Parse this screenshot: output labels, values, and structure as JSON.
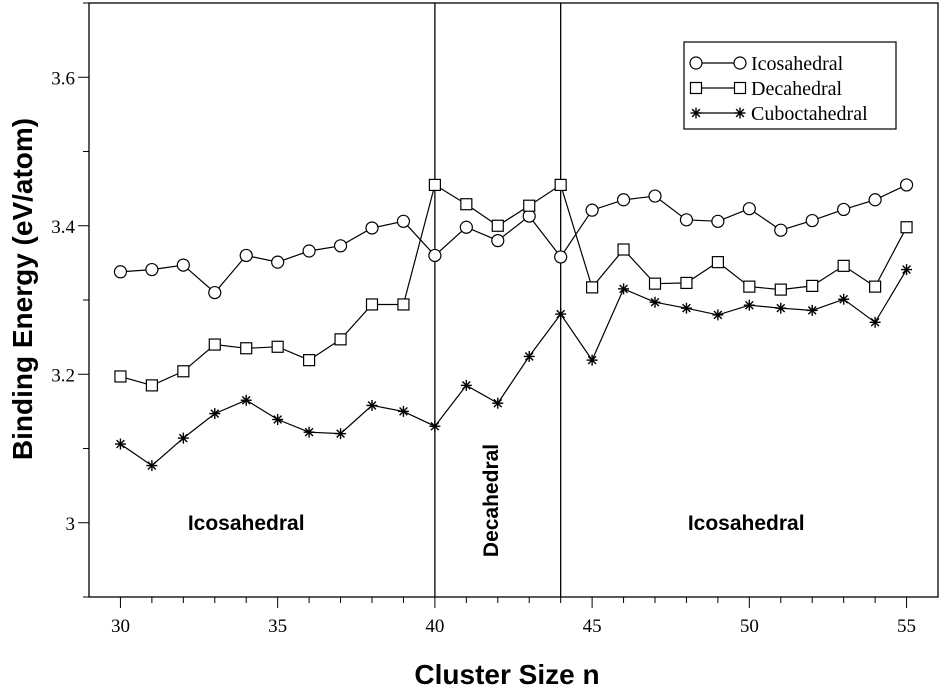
{
  "chart_data": {
    "type": "line",
    "title": "",
    "xlabel": "Cluster Size n",
    "ylabel": "Binding Energy (eV/atom)",
    "xlim": [
      29,
      56
    ],
    "ylim": [
      2.9,
      3.7
    ],
    "x_ticks": [
      30,
      35,
      40,
      45,
      50,
      55
    ],
    "x_tick_labels": [
      "30",
      "35",
      "40",
      "45",
      "50",
      "55"
    ],
    "x_minor_ticks": [
      31,
      32,
      33,
      34,
      36,
      37,
      38,
      39,
      41,
      42,
      43,
      44,
      46,
      47,
      48,
      49,
      51,
      52,
      53,
      54
    ],
    "y_ticks": [
      3.0,
      3.2,
      3.4,
      3.6
    ],
    "y_tick_labels": [
      "3",
      "3.2",
      "3.4",
      "3.6"
    ],
    "y_minor_ticks": [
      2.9,
      3.1,
      3.3,
      3.5,
      3.7
    ],
    "grid": false,
    "legend_position": "top-right",
    "x": [
      30,
      31,
      32,
      33,
      34,
      35,
      36,
      37,
      38,
      39,
      40,
      41,
      42,
      43,
      44,
      45,
      46,
      47,
      48,
      49,
      50,
      51,
      52,
      53,
      54,
      55
    ],
    "series": [
      {
        "name": "Icosahedral",
        "marker": "circle",
        "values": [
          3.338,
          3.341,
          3.347,
          3.31,
          3.36,
          3.351,
          3.366,
          3.373,
          3.397,
          3.406,
          3.36,
          3.398,
          3.38,
          3.413,
          3.358,
          3.421,
          3.435,
          3.44,
          3.408,
          3.406,
          3.423,
          3.394,
          3.407,
          3.422,
          3.435,
          3.455
        ]
      },
      {
        "name": "Decahedral",
        "marker": "square",
        "values": [
          3.197,
          3.185,
          3.204,
          3.24,
          3.235,
          3.237,
          3.219,
          3.247,
          3.294,
          3.294,
          3.455,
          3.429,
          3.4,
          3.427,
          3.455,
          3.317,
          3.368,
          3.322,
          3.323,
          3.351,
          3.318,
          3.314,
          3.319,
          3.346,
          3.318,
          3.398
        ]
      },
      {
        "name": "Cuboctahedral",
        "marker": "asterisk",
        "values": [
          3.106,
          3.077,
          3.114,
          3.147,
          3.165,
          3.139,
          3.122,
          3.12,
          3.158,
          3.15,
          3.13,
          3.185,
          3.161,
          3.224,
          3.281,
          3.219,
          3.315,
          3.297,
          3.289,
          3.28,
          3.293,
          3.289,
          3.286,
          3.301,
          3.27,
          3.341
        ]
      }
    ],
    "vertical_lines": [
      40,
      44
    ],
    "regions": [
      {
        "label": "Icosahedral",
        "x": 34,
        "y": 2.99,
        "rotated": false
      },
      {
        "label": "Decahedral",
        "x": 42,
        "y": 3.03,
        "rotated": true
      },
      {
        "label": "Icosahedral",
        "x": 49.9,
        "y": 2.99,
        "rotated": false
      }
    ]
  }
}
